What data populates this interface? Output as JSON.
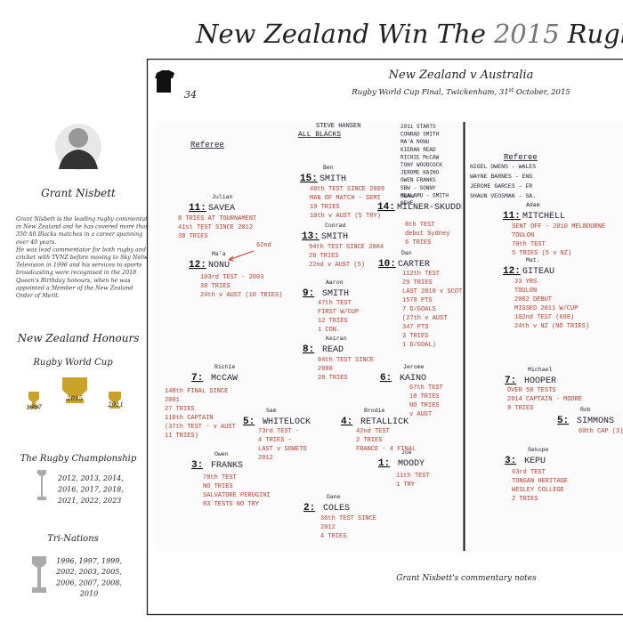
{
  "header": {
    "title_parts": [
      "New Zealand Win The",
      "2015",
      "Rugby W"
    ]
  },
  "sidebar": {
    "name": "Grant Nisbett",
    "bio": [
      "Grant Nisbett is the leading rugby commentator",
      "in New Zealand and he has covered more than",
      "350 All Blacks matches in a career spanning",
      "over 40 years.",
      "He was lead commentator for both rugby and",
      "cricket with TVNZ before moving to Sky Network",
      "Television in 1996 and his services to sports",
      "broadcasting were recognised in the 2018",
      "Queen's Birthday honours, when he was",
      "appointed a Member of the New Zealand",
      "Order of Merit."
    ],
    "honours_title": "New Zealand Honours",
    "rwc": {
      "title": "Rugby World Cup",
      "years": [
        "1987",
        "2015",
        "2011"
      ]
    },
    "championship": {
      "title": "The Rugby Championship",
      "years": [
        "2012, 2013, 2014,",
        "2016, 2017, 2018,",
        "2021, 2022, 2023"
      ]
    },
    "tri_nations": {
      "title": "Tri-Nations",
      "years": [
        "1996, 1997, 1999,",
        "2002, 2003, 2005,",
        "2006, 2007, 2008,",
        "2010"
      ]
    }
  },
  "notes": {
    "shirt_number": "34",
    "title": "New Zealand v Australia",
    "subtitle_parts": [
      "Rugby World Cup Final, Twickenham, 31",
      "st",
      " October, 2015"
    ],
    "caption": "Grant Nisbett's commentary notes",
    "left": {
      "referee": "Referee",
      "coach": "STEVE HANSEN",
      "team": "ALL BLACKS",
      "starts": [
        "2011 STARTS",
        "CONRAD SMITH",
        "MA'A NONU",
        "KIERAN READ",
        "RICHIE McCAW",
        "TONY WOODCOCK",
        "JEROME KAINO",
        "OWEN FRANKS",
        "SBW - SONNY",
        "MEALAMU - SMITH",
        "NEHE"
      ],
      "annotation": "62nd",
      "players": [
        {
          "number": "15:",
          "first": "Ben",
          "name": "SMITH",
          "notes": [
            "48th TEST SINCE 2009",
            "MAN OF MATCH - SEMI",
            "19 TRIES",
            "10th v AUST (5 TRY)"
          ]
        },
        {
          "number": "14:",
          "first": "Nehe",
          "name": "MILNER-SKUDDER",
          "notes": [
            "8th TEST",
            "debut Sydney",
            "6 TRIES"
          ]
        },
        {
          "number": "11:",
          "first": "Julian",
          "name": "SAVEA",
          "notes": [
            "8 TRIES AT TOURNAMENT",
            "41st TEST SINCE 2012",
            "38 TRIES"
          ]
        },
        {
          "number": "13:",
          "first": "Conrad",
          "name": "SMITH",
          "notes": [
            "94th TEST SINCE 2004",
            "26 TRIES",
            "22nd v AUST (5)"
          ]
        },
        {
          "number": "12:",
          "first": "Ma'a",
          "name": "NONU",
          "notes": [
            "103rd TEST - 2003",
            "30 TRIES",
            "24th v AUST (10 TRIES)"
          ]
        },
        {
          "number": "10:",
          "first": "Dan",
          "name": "CARTER",
          "notes": [
            "112th TEST",
            "29 TRIES",
            "LAST 2010 v SCOTLAND",
            "1578 PTS",
            "7 D/GOALS",
            "(27th v AUST",
            "347 PTS",
            "3 TRIES",
            "1 D/GOAL)"
          ]
        },
        {
          "number": "9:",
          "first": "Aaron",
          "name": "SMITH",
          "notes": [
            "47th TEST",
            "FIRST W/CUP",
            "12 TRIES",
            "1 CON."
          ]
        },
        {
          "number": "8:",
          "first": "Keiran",
          "name": "READ",
          "notes": [
            "84th TEST SINCE",
            "2008",
            "20 TRIES"
          ]
        },
        {
          "number": "7:",
          "first": "Richie",
          "name": "McCAW",
          "notes": [
            "148th FINAL SINCE",
            "2001",
            "27 TRIES",
            "110th CAPTAIN",
            "(37th TEST - v AUST",
            "11 TRIES)"
          ]
        },
        {
          "number": "6:",
          "first": "Jerome",
          "name": "KAINO",
          "notes": [
            "67th TEST",
            "10 TRIES",
            "NO TRIES",
            "v AUST"
          ]
        },
        {
          "number": "5:",
          "first": "Sam",
          "name": "WHITELOCK",
          "notes": [
            "73rd TEST -",
            "4 TRIES -",
            "LAST v SOWETO",
            "2012"
          ]
        },
        {
          "number": "4:",
          "first": "Brodie",
          "name": "RETALLICK",
          "notes": [
            "42nd TEST",
            "2 TRIES",
            "FRANCE - 4 FINAL"
          ]
        },
        {
          "number": "3:",
          "first": "Owen",
          "name": "FRANKS",
          "notes": [
            "78th TEST",
            "NO TRIES",
            "SALVATORE PERUGINI",
            "83 TESTS NO TRY"
          ]
        },
        {
          "number": "1:",
          "first": "Joe",
          "name": "MOODY",
          "notes": [
            "11th TEST",
            "1 TRY"
          ]
        },
        {
          "number": "2:",
          "first": "Dane",
          "name": "COLES",
          "notes": [
            "36th TEST SINCE",
            "2012",
            "4 TRIES"
          ]
        }
      ]
    },
    "right": {
      "referee": "Referee",
      "referees": [
        "NIGEL OWENS - WALES",
        "WAYNE BARNES - ENG",
        "JEROME GARCES - FR",
        "SHAUN VEOSMAN - SA."
      ],
      "players": [
        {
          "number": "11:",
          "first": "Adam",
          "name": "MITCHELL",
          "notes": [
            "SENT OFF - 2010 MELBOURNE",
            "TOULON",
            "70th TEST",
            "5 TRIES   (5 v NZ)"
          ]
        },
        {
          "number": "12:",
          "first": "Mat.",
          "name": "GITEAU",
          "notes": [
            "33 YRS",
            "TOULON",
            "2002 DEBUT",
            "MISSED 2011 W/CUP",
            "102nd TEST (698)",
            "24th v NZ (NO TRIES)"
          ]
        },
        {
          "number": "7:",
          "first": "Michael",
          "name": "HOOPER",
          "notes": [
            "OVER 50 TESTS",
            "2014 CAPTAIN - MOORE",
            "9 TRIES"
          ]
        },
        {
          "number": "5:",
          "first": "Rob",
          "name": "SIMMONS",
          "notes": [
            "60th CAP (3)"
          ]
        },
        {
          "number": "3:",
          "first": "Sekope",
          "name": "KEPU",
          "notes": [
            "63rd TEST",
            "TONGAN HERITAGE",
            "WESLEY COLLEGE",
            "2 TRIES"
          ]
        }
      ]
    }
  }
}
